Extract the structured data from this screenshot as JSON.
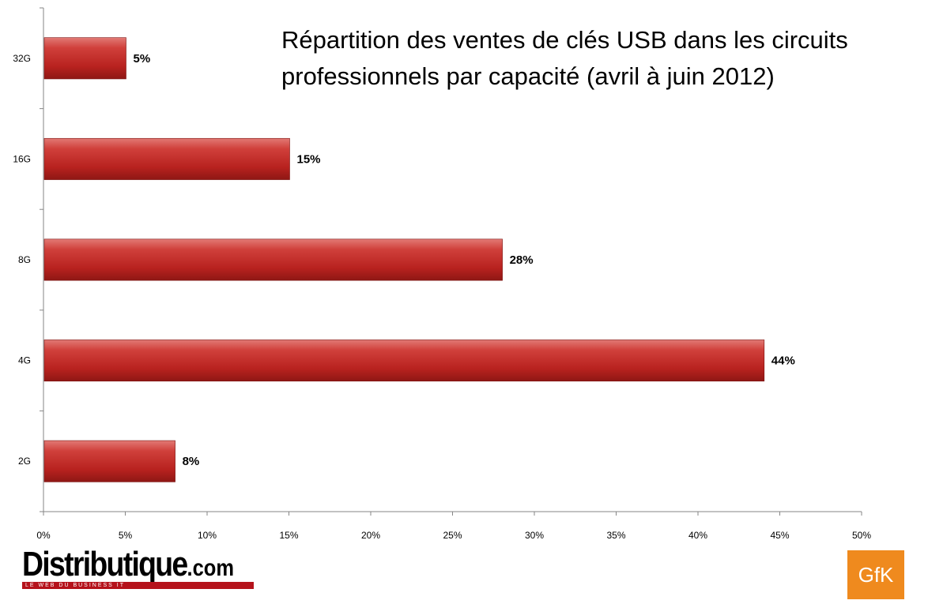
{
  "chart_data": {
    "type": "bar",
    "orientation": "horizontal",
    "title": "Répartition des ventes de clés USB dans les circuits professionnels par capacité (avril à juin 2012)",
    "categories": [
      "2G",
      "4G",
      "8G",
      "16G",
      "32G"
    ],
    "values": [
      8,
      44,
      28,
      15,
      5
    ],
    "value_labels": [
      "8%",
      "44%",
      "28%",
      "15%",
      "5%"
    ],
    "xlim": [
      0,
      50
    ],
    "xticks": [
      "0%",
      "5%",
      "10%",
      "15%",
      "20%",
      "25%",
      "30%",
      "35%",
      "40%",
      "45%",
      "50%"
    ],
    "grid": false,
    "legend": "none",
    "bar_color": "#c0322e"
  },
  "logos": {
    "distributique_main": "Distributique",
    "distributique_dotcom": ".com",
    "distributique_tagline": "LE WEB DU BUSINESS IT",
    "gfk": "GfK"
  }
}
